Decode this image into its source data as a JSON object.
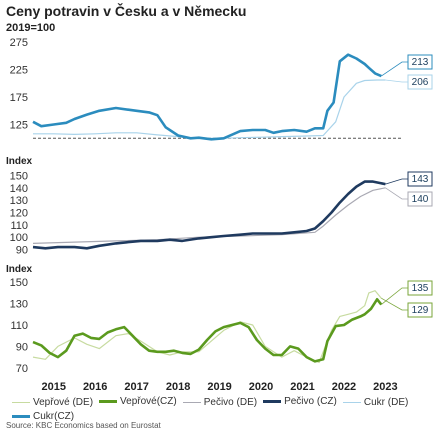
{
  "title": "Ceny potravin v Česku a v Německu",
  "subtitle": "2019=100",
  "source": "Source: KBC Economics based on Eurostat",
  "chart_data": [
    {
      "type": "line",
      "ylabel": "",
      "ylim": [
        75,
        275
      ],
      "yticks": [
        "275",
        "225",
        "175",
        "125"
      ],
      "reference_line": 100,
      "series": [
        {
          "name": "Cukr (DE)",
          "color": "#a9d3ea",
          "x": [
            2015.0,
            2015.5,
            2016.0,
            2016.5,
            2017.0,
            2017.5,
            2018.0,
            2018.5,
            2019.0,
            2019.5,
            2020.0,
            2020.5,
            2021.0,
            2021.5,
            2022.0,
            2022.3,
            2022.5,
            2022.8,
            2023.0,
            2023.3,
            2023.5
          ],
          "values": [
            108,
            108,
            107,
            108,
            110,
            110,
            106,
            103,
            100,
            100,
            101,
            102,
            103,
            104,
            105,
            130,
            175,
            200,
            205,
            206,
            206
          ]
        },
        {
          "name": "Cukr(CZ)",
          "color": "#2b8cbe",
          "x": [
            2015.0,
            2015.2,
            2015.5,
            2015.8,
            2016.0,
            2016.3,
            2016.6,
            2017.0,
            2017.3,
            2017.5,
            2017.8,
            2018.0,
            2018.2,
            2018.5,
            2018.8,
            2019.0,
            2019.3,
            2019.6,
            2020.0,
            2020.3,
            2020.6,
            2020.8,
            2021.0,
            2021.3,
            2021.6,
            2021.8,
            2022.0,
            2022.1,
            2022.25,
            2022.4,
            2022.6,
            2022.8,
            2023.0,
            2023.1,
            2023.25,
            2023.4
          ],
          "values": [
            130,
            122,
            125,
            128,
            135,
            143,
            150,
            155,
            152,
            150,
            147,
            142,
            120,
            105,
            100,
            101,
            98,
            100,
            113,
            115,
            115,
            110,
            113,
            115,
            112,
            118,
            118,
            150,
            165,
            240,
            252,
            245,
            235,
            228,
            218,
            213
          ]
        }
      ],
      "callouts": [
        {
          "text": "213",
          "color": "#2b8cbe"
        },
        {
          "text": "206",
          "color": "#a9d3ea"
        }
      ]
    },
    {
      "type": "line",
      "ylabel": "Index",
      "ylim": [
        88,
        152
      ],
      "yticks": [
        "150",
        "140",
        "130",
        "120",
        "110",
        "100",
        "90"
      ],
      "series": [
        {
          "name": "Pečivo (DE)",
          "color": "#a9a9b3",
          "x": [
            2015.0,
            2016.0,
            2017.0,
            2018.0,
            2019.0,
            2020.0,
            2021.0,
            2021.8,
            2022.0,
            2022.3,
            2022.6,
            2022.9,
            2023.2,
            2023.5
          ],
          "values": [
            95,
            96,
            97,
            98,
            100,
            101,
            102,
            104,
            109,
            118,
            126,
            133,
            138,
            140
          ]
        },
        {
          "name": "Pečivo (CZ)",
          "color": "#1f3a5f",
          "x": [
            2015.0,
            2015.3,
            2015.6,
            2016.0,
            2016.3,
            2016.6,
            2017.0,
            2017.3,
            2017.6,
            2018.0,
            2018.3,
            2018.6,
            2019.0,
            2019.3,
            2019.6,
            2020.0,
            2020.3,
            2020.6,
            2021.0,
            2021.3,
            2021.6,
            2021.8,
            2022.0,
            2022.2,
            2022.4,
            2022.6,
            2022.8,
            2023.0,
            2023.2,
            2023.35,
            2023.5
          ],
          "values": [
            92,
            91,
            92,
            92,
            91,
            93,
            95,
            96,
            97,
            97,
            98,
            97,
            99,
            100,
            101,
            102,
            103,
            103,
            103,
            104,
            105,
            107,
            113,
            120,
            128,
            135,
            141,
            145,
            145,
            144,
            143
          ]
        }
      ],
      "callouts": [
        {
          "text": "143",
          "color": "#1f3a5f"
        },
        {
          "text": "140",
          "color": "#a9a9b3"
        }
      ]
    },
    {
      "type": "line",
      "ylabel": "Index",
      "ylim": [
        68,
        152
      ],
      "yticks": [
        "150",
        "130",
        "110",
        "90",
        "70"
      ],
      "series": [
        {
          "name": "Vepřové (DE)",
          "color": "#c7dba0",
          "x": [
            2015.0,
            2015.3,
            2015.6,
            2016.0,
            2016.3,
            2016.6,
            2017.0,
            2017.3,
            2017.6,
            2018.0,
            2018.3,
            2018.6,
            2019.0,
            2019.3,
            2019.6,
            2020.0,
            2020.3,
            2020.6,
            2021.0,
            2021.3,
            2021.6,
            2021.9,
            2022.0,
            2022.2,
            2022.4,
            2022.6,
            2022.8,
            2023.0,
            2023.1,
            2023.25,
            2023.4
          ],
          "values": [
            80,
            78,
            90,
            98,
            92,
            88,
            100,
            102,
            95,
            85,
            82,
            85,
            85,
            95,
            105,
            113,
            110,
            90,
            80,
            86,
            80,
            75,
            85,
            105,
            118,
            120,
            122,
            128,
            140,
            142,
            135
          ]
        },
        {
          "name": "Vepřové(CZ)",
          "color": "#5b9a1e",
          "x": [
            2015.0,
            2015.2,
            2015.4,
            2015.6,
            2015.8,
            2016.0,
            2016.2,
            2016.4,
            2016.6,
            2016.8,
            2017.0,
            2017.2,
            2017.4,
            2017.6,
            2017.8,
            2018.0,
            2018.2,
            2018.4,
            2018.6,
            2018.8,
            2019.0,
            2019.2,
            2019.4,
            2019.6,
            2019.8,
            2020.0,
            2020.2,
            2020.4,
            2020.6,
            2020.8,
            2021.0,
            2021.2,
            2021.4,
            2021.6,
            2021.8,
            2022.0,
            2022.1,
            2022.3,
            2022.5,
            2022.7,
            2022.9,
            2023.0,
            2023.15,
            2023.3,
            2023.4
          ],
          "values": [
            94,
            91,
            84,
            80,
            86,
            100,
            102,
            98,
            97,
            103,
            106,
            108,
            100,
            92,
            86,
            85,
            85,
            86,
            84,
            83,
            87,
            96,
            104,
            108,
            110,
            112,
            108,
            96,
            88,
            82,
            82,
            90,
            88,
            80,
            76,
            78,
            95,
            109,
            110,
            115,
            118,
            120,
            125,
            134,
            129
          ]
        }
      ],
      "callouts": [
        {
          "text": "135",
          "color": "#7aa63a"
        },
        {
          "text": "129",
          "color": "#7aa63a"
        }
      ]
    }
  ],
  "x_axis": {
    "ticks": [
      "2015",
      "2016",
      "2017",
      "2018",
      "2019",
      "2020",
      "2021",
      "2022",
      "2023"
    ],
    "range": [
      2015.0,
      2023.9
    ]
  },
  "legend": [
    {
      "label": "Vepřové (DE)",
      "color": "#c7dba0",
      "width": 1
    },
    {
      "label": "Vepřové(CZ)",
      "color": "#5b9a1e",
      "width": 3
    },
    {
      "label": "Pečivo (DE)",
      "color": "#a9a9b3",
      "width": 1
    },
    {
      "label": "Pečivo (CZ)",
      "color": "#1f3a5f",
      "width": 3
    },
    {
      "label": "Cukr (DE)",
      "color": "#a9d3ea",
      "width": 1
    },
    {
      "label": "Cukr(CZ)",
      "color": "#2b8cbe",
      "width": 3
    }
  ]
}
